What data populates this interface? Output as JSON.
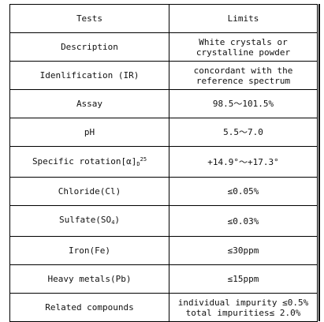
{
  "header": {
    "tests": "Tests",
    "limits": "Limits"
  },
  "rows": [
    {
      "test": "Description",
      "limit_lines": [
        "White crystals or",
        "crystalline powder"
      ]
    },
    {
      "test": "Idenlification (IR)",
      "limit_lines": [
        "concordant with the",
        "reference  spectrum"
      ]
    },
    {
      "test": "Assay",
      "limit": "98.5～101.5%"
    },
    {
      "test": "pH",
      "limit": "5.5～7.0"
    },
    {
      "test_main": "Specific rotation[α]",
      "test_sub": "D",
      "test_sup": "25",
      "limit": "+14.9°～+17.3°"
    },
    {
      "test": "Chloride(Cl)",
      "limit": "≤0.05%"
    },
    {
      "test_main": "Sulfate(SO",
      "test_sub": "4",
      "test_end": ")",
      "limit": "≤0.03%"
    },
    {
      "test": "Iron(Fe)",
      "limit": "≤30ppm"
    },
    {
      "test": "Heavy metals(Pb)",
      "limit": "≤15ppm"
    },
    {
      "test": "Related compounds",
      "limit_lines": [
        "individual impurity ≤0.5%",
        "total impurities≤ 2.0%"
      ]
    }
  ]
}
